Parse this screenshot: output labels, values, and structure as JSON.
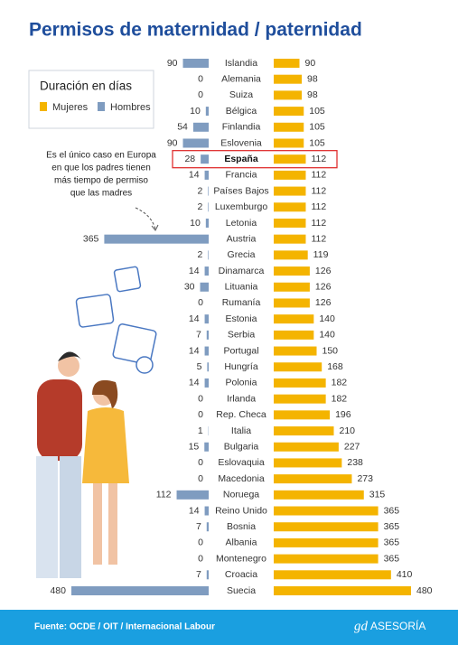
{
  "chart_data": {
    "type": "butterfly-bar",
    "title": "Permisos de maternidad / paternidad",
    "legend_title": "Duración en días",
    "categories": [
      "Islandia",
      "Alemania",
      "Suiza",
      "Bélgica",
      "Finlandia",
      "Eslovenia",
      "España",
      "Francia",
      "Países Bajos",
      "Luxemburgo",
      "Letonia",
      "Austria",
      "Grecia",
      "Dinamarca",
      "Lituania",
      "Rumanía",
      "Estonia",
      "Serbia",
      "Portugal",
      "Hungría",
      "Polonia",
      "Irlanda",
      "Rep. Checa",
      "Italia",
      "Bulgaria",
      "Eslovaquia",
      "Macedonia",
      "Noruega",
      "Reino Unido",
      "Bosnia",
      "Albania",
      "Montenegro",
      "Croacia",
      "Suecia"
    ],
    "series": [
      {
        "name": "Mujeres",
        "color": "#f4b400",
        "values": [
          90,
          98,
          98,
          105,
          105,
          105,
          112,
          112,
          112,
          112,
          112,
          112,
          119,
          126,
          126,
          126,
          140,
          140,
          150,
          168,
          182,
          182,
          196,
          210,
          227,
          238,
          273,
          315,
          365,
          365,
          365,
          365,
          410,
          480
        ]
      },
      {
        "name": "Hombres",
        "color": "#7f9cc0",
        "values": [
          90,
          0,
          0,
          10,
          54,
          90,
          28,
          14,
          2,
          2,
          10,
          365,
          2,
          14,
          30,
          0,
          14,
          7,
          14,
          5,
          14,
          0,
          0,
          1,
          15,
          0,
          0,
          112,
          14,
          7,
          0,
          0,
          7,
          480
        ]
      }
    ],
    "highlight_category": 6,
    "annotation": [
      "Es el único caso en Europa",
      "en que los padres tienen",
      "más tiempo de permiso",
      "que las madres"
    ],
    "source": "Fuente: OCDE / OIT / Internacional Labour",
    "brand": {
      "logo": "gd",
      "name": "ASESORÍA"
    }
  }
}
